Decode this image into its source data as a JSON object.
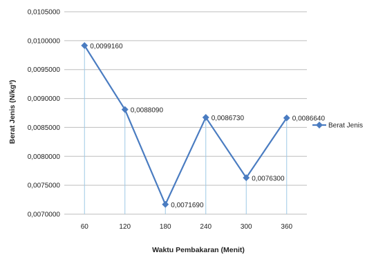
{
  "chart_data": {
    "type": "line",
    "title": "",
    "xlabel": "Waktu Pembakaran (Menit)",
    "ylabel": "Berat Jenis (N/kg³)",
    "categories": [
      "60",
      "120",
      "180",
      "240",
      "300",
      "360"
    ],
    "series": [
      {
        "name": "Berat Jenis",
        "values": [
          0.009916,
          0.008809,
          0.007169,
          0.008673,
          0.00763,
          0.008664
        ],
        "data_labels": [
          "0,0099160",
          "0,0088090",
          "0,0071690",
          "0,0086730",
          "0,0076300",
          "0,0086640"
        ],
        "color": "#4a7cc1"
      }
    ],
    "y_ticks": [
      "0,0070000",
      "0,0075000",
      "0,0080000",
      "0,0085000",
      "0,0090000",
      "0,0095000",
      "0,0100000",
      "0,0105000"
    ],
    "ylim": [
      0.007,
      0.0105
    ],
    "grid": true,
    "drop_lines": true,
    "legend_position": "right",
    "colors": {
      "series": "#4a7cc1",
      "grid": "#bdbdbd",
      "drop_line": "#9ec9e6"
    }
  }
}
